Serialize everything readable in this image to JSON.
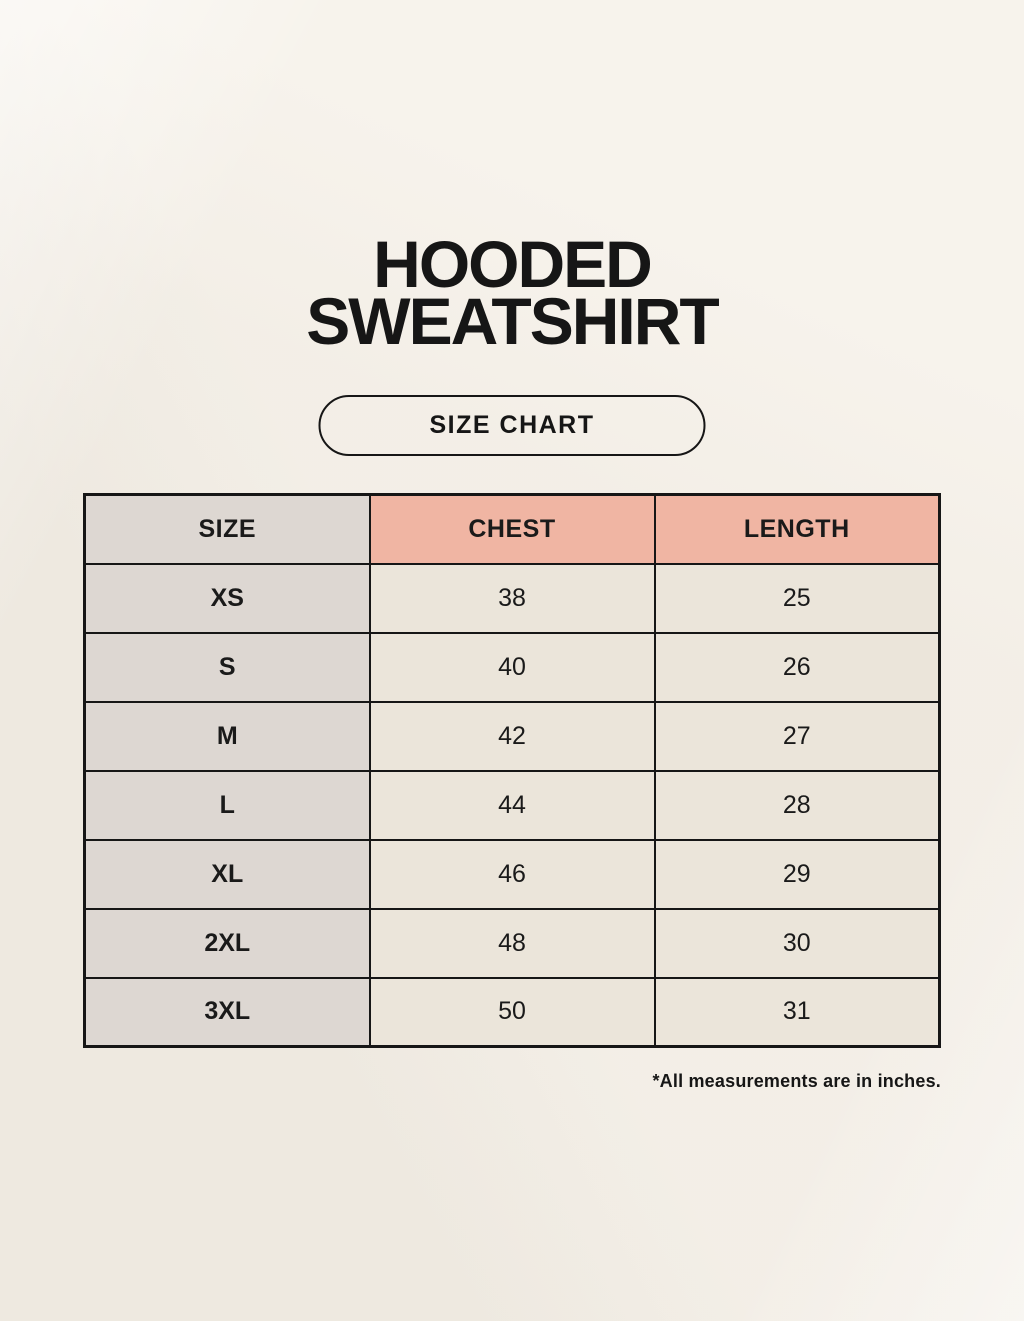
{
  "title": {
    "line1": "HOODED",
    "line2": "SWEATSHIRT"
  },
  "badge": {
    "label": "SIZE CHART"
  },
  "chart_data": {
    "type": "table",
    "title": "HOODED SWEATSHIRT SIZE CHART",
    "columns": [
      "SIZE",
      "CHEST",
      "LENGTH"
    ],
    "rows": [
      [
        "XS",
        38,
        25
      ],
      [
        "S",
        40,
        26
      ],
      [
        "M",
        42,
        27
      ],
      [
        "L",
        44,
        28
      ],
      [
        "XL",
        46,
        29
      ],
      [
        "2XL",
        48,
        30
      ],
      [
        "3XL",
        50,
        31
      ]
    ],
    "note": "*All measurements are in inches."
  },
  "colors": {
    "page_background": "#f7f3ec",
    "size_column_bg": "#ddd7d2",
    "header_accent_bg": "#f0b5a3",
    "data_cell_bg": "#ebe5da",
    "border": "#161616",
    "text": "#161616"
  }
}
